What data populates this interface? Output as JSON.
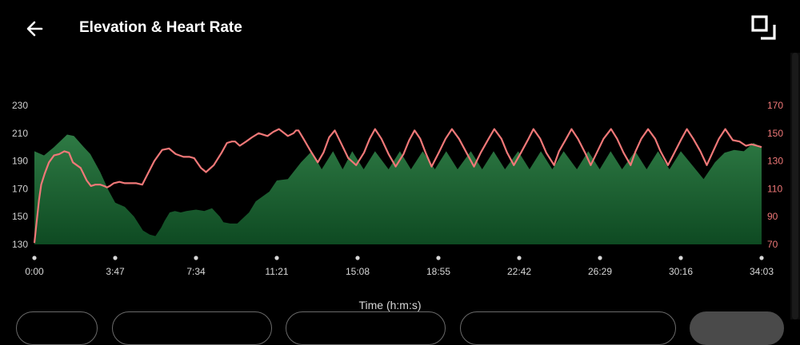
{
  "header": {
    "title": "Elevation & Heart Rate",
    "back_icon": "arrow-left-icon",
    "expand_icon": "expand-fullscreen-icon"
  },
  "chart_data": {
    "type": "area",
    "xlabel": "Time (h:m:s)",
    "x_ticks": [
      "0:00",
      "3:47",
      "7:34",
      "11:21",
      "15:08",
      "18:55",
      "22:42",
      "26:29",
      "30:16",
      "34:03"
    ],
    "y_left_ticks": [
      130,
      150,
      170,
      190,
      210,
      230
    ],
    "y_right_ticks": [
      70,
      90,
      110,
      130,
      150,
      170
    ],
    "ylim_left": [
      130,
      230
    ],
    "ylim_right": [
      70,
      170
    ],
    "grid": false,
    "colors": {
      "elevation_top": "#2e7a44",
      "elevation_bottom": "#0e4a22",
      "heart_rate": "#f07878",
      "left_axis_text": "#d0d0d0",
      "right_axis_text": "#f07878"
    },
    "series": [
      {
        "axis": "left",
        "style": "area",
        "x": [
          "0:00",
          "0:27",
          "0:55",
          "1:32",
          "1:51",
          "2:19",
          "2:37",
          "3:05",
          "3:28",
          "3:47",
          "4:14",
          "4:40",
          "5:05",
          "5:24",
          "5:40",
          "5:56",
          "6:06",
          "6:20",
          "6:35",
          "6:51",
          "7:07",
          "7:34",
          "7:57",
          "8:19",
          "8:41",
          "8:51",
          "9:10",
          "9:30",
          "10:03",
          "10:22",
          "11:00",
          "11:21",
          "11:52",
          "12:29",
          "12:59",
          "13:27",
          "13:59",
          "14:26",
          "14:53",
          "15:25",
          "15:57",
          "16:35",
          "17:07",
          "17:38",
          "18:11",
          "18:45",
          "19:17",
          "19:49",
          "20:26",
          "20:58",
          "21:30",
          "22:02",
          "22:39",
          "23:11",
          "23:43",
          "24:15",
          "24:47",
          "25:24",
          "25:56",
          "26:28",
          "26:59",
          "27:31",
          "28:08",
          "28:40",
          "29:12",
          "29:44",
          "30:16",
          "30:48",
          "31:20",
          "31:52",
          "32:19",
          "32:46",
          "33:13",
          "33:40",
          "34:03"
        ],
        "y": [
          197,
          194,
          200,
          209,
          208,
          200,
          195,
          182,
          169,
          160,
          157,
          150,
          140,
          137,
          136,
          142,
          147,
          153,
          154,
          153,
          154,
          155,
          154,
          156,
          150,
          146,
          145,
          145,
          153,
          161,
          168,
          176,
          177,
          189,
          197,
          184,
          197,
          184,
          197,
          184,
          197,
          184,
          197,
          184,
          197,
          184,
          197,
          184,
          197,
          184,
          197,
          184,
          197,
          184,
          197,
          184,
          197,
          184,
          197,
          184,
          197,
          184,
          197,
          184,
          197,
          184,
          197,
          187,
          177,
          189,
          196,
          198,
          197,
          203,
          200
        ]
      },
      {
        "axis": "right",
        "style": "line",
        "x": [
          "0:00",
          "0:05",
          "0:13",
          "0:19",
          "0:29",
          "0:41",
          "0:55",
          "1:10",
          "1:24",
          "1:37",
          "1:48",
          "2:10",
          "2:27",
          "2:39",
          "2:51",
          "3:05",
          "3:16",
          "3:24",
          "3:32",
          "3:43",
          "3:59",
          "4:14",
          "4:25",
          "4:46",
          "5:03",
          "5:19",
          "5:37",
          "5:59",
          "6:18",
          "6:37",
          "6:59",
          "7:16",
          "7:29",
          "7:37",
          "7:48",
          "8:02",
          "8:24",
          "8:46",
          "9:01",
          "9:15",
          "9:24",
          "9:37",
          "9:55",
          "10:11",
          "10:30",
          "10:55",
          "11:11",
          "11:27",
          "11:52",
          "12:08",
          "12:15",
          "12:22",
          "12:36",
          "12:54",
          "13:16",
          "13:32",
          "13:48",
          "14:04",
          "14:23",
          "14:42",
          "15:04",
          "15:26",
          "15:42",
          "15:57",
          "16:15",
          "16:35",
          "16:55",
          "17:17",
          "17:33",
          "17:48",
          "18:04",
          "18:19",
          "18:36",
          "18:56",
          "19:15",
          "19:33",
          "19:53",
          "20:14",
          "20:35",
          "20:54",
          "21:16",
          "21:32",
          "21:52",
          "22:08",
          "22:27",
          "22:47",
          "23:08",
          "23:22",
          "23:41",
          "23:58",
          "24:20",
          "24:34",
          "24:54",
          "25:09",
          "25:27",
          "25:47",
          "26:03",
          "26:20",
          "26:39",
          "27:00",
          "27:17",
          "27:35",
          "27:55",
          "28:09",
          "28:25",
          "28:44",
          "29:04",
          "29:19",
          "29:40",
          "29:58",
          "30:18",
          "30:33",
          "30:51",
          "31:11",
          "31:29",
          "31:45",
          "32:03",
          "32:21",
          "32:42",
          "33:01",
          "33:19",
          "33:35",
          "33:50",
          "34:03"
        ],
        "y": [
          71,
          83,
          102,
          113,
          121,
          129,
          134,
          135,
          137,
          136,
          129,
          125,
          116,
          112,
          113,
          113,
          112,
          111,
          112,
          114,
          115,
          114,
          114,
          114,
          113,
          121,
          130,
          138,
          139,
          135,
          133,
          133,
          132,
          129,
          125,
          122,
          127,
          136,
          143,
          144,
          144,
          141,
          144,
          147,
          150,
          148,
          151,
          153,
          148,
          150,
          152,
          152,
          146,
          138,
          129,
          136,
          147,
          152,
          142,
          132,
          127,
          136,
          146,
          153,
          146,
          135,
          126,
          135,
          145,
          152,
          146,
          136,
          126,
          136,
          146,
          153,
          146,
          136,
          126,
          136,
          146,
          153,
          146,
          136,
          127,
          136,
          146,
          153,
          146,
          136,
          127,
          137,
          146,
          153,
          146,
          136,
          127,
          136,
          146,
          153,
          146,
          136,
          127,
          137,
          146,
          153,
          146,
          137,
          127,
          136,
          146,
          153,
          146,
          137,
          127,
          136,
          146,
          153,
          145,
          144,
          141,
          142,
          141,
          140
        ]
      }
    ]
  },
  "filters": [
    "",
    "",
    "",
    "",
    ""
  ]
}
